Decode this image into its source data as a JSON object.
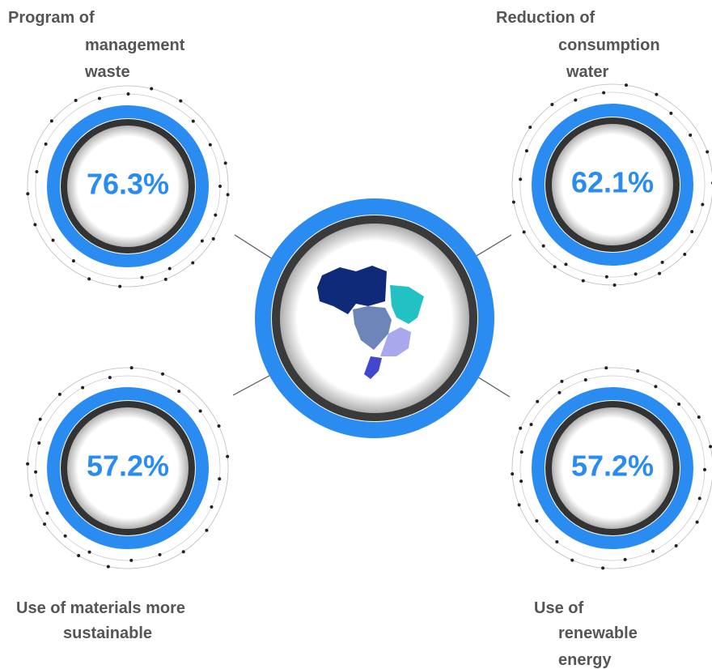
{
  "items": [
    {
      "label": [
        "Program of",
        "management",
        "waste"
      ],
      "value": "76.3%"
    },
    {
      "label": [
        "Reduction of",
        "consumption",
        "water"
      ],
      "value": "62.1%"
    },
    {
      "label": [
        "Use of materials more",
        "sustainable"
      ],
      "value": "57.2%"
    },
    {
      "label": [
        "Use of",
        "renewable",
        "energy"
      ],
      "value": "57.2%"
    }
  ]
}
